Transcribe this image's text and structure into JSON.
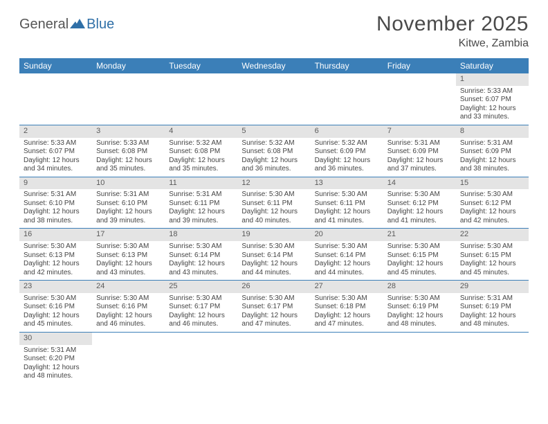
{
  "logo": {
    "text_general": "General",
    "text_blue": "Blue"
  },
  "header": {
    "month_title": "November 2025",
    "location": "Kitwe, Zambia"
  },
  "colors": {
    "header_bg": "#3b7fb8",
    "header_text": "#ffffff",
    "daynum_bg": "#e4e4e4",
    "body_text": "#444444",
    "rule": "#3b7fb8"
  },
  "day_names": [
    "Sunday",
    "Monday",
    "Tuesday",
    "Wednesday",
    "Thursday",
    "Friday",
    "Saturday"
  ],
  "weeks": [
    [
      null,
      null,
      null,
      null,
      null,
      null,
      {
        "n": 1,
        "sunrise": "5:33 AM",
        "sunset": "6:07 PM",
        "daylight": "12 hours and 33 minutes."
      }
    ],
    [
      {
        "n": 2,
        "sunrise": "5:33 AM",
        "sunset": "6:07 PM",
        "daylight": "12 hours and 34 minutes."
      },
      {
        "n": 3,
        "sunrise": "5:33 AM",
        "sunset": "6:08 PM",
        "daylight": "12 hours and 35 minutes."
      },
      {
        "n": 4,
        "sunrise": "5:32 AM",
        "sunset": "6:08 PM",
        "daylight": "12 hours and 35 minutes."
      },
      {
        "n": 5,
        "sunrise": "5:32 AM",
        "sunset": "6:08 PM",
        "daylight": "12 hours and 36 minutes."
      },
      {
        "n": 6,
        "sunrise": "5:32 AM",
        "sunset": "6:09 PM",
        "daylight": "12 hours and 36 minutes."
      },
      {
        "n": 7,
        "sunrise": "5:31 AM",
        "sunset": "6:09 PM",
        "daylight": "12 hours and 37 minutes."
      },
      {
        "n": 8,
        "sunrise": "5:31 AM",
        "sunset": "6:09 PM",
        "daylight": "12 hours and 38 minutes."
      }
    ],
    [
      {
        "n": 9,
        "sunrise": "5:31 AM",
        "sunset": "6:10 PM",
        "daylight": "12 hours and 38 minutes."
      },
      {
        "n": 10,
        "sunrise": "5:31 AM",
        "sunset": "6:10 PM",
        "daylight": "12 hours and 39 minutes."
      },
      {
        "n": 11,
        "sunrise": "5:31 AM",
        "sunset": "6:11 PM",
        "daylight": "12 hours and 39 minutes."
      },
      {
        "n": 12,
        "sunrise": "5:30 AM",
        "sunset": "6:11 PM",
        "daylight": "12 hours and 40 minutes."
      },
      {
        "n": 13,
        "sunrise": "5:30 AM",
        "sunset": "6:11 PM",
        "daylight": "12 hours and 41 minutes."
      },
      {
        "n": 14,
        "sunrise": "5:30 AM",
        "sunset": "6:12 PM",
        "daylight": "12 hours and 41 minutes."
      },
      {
        "n": 15,
        "sunrise": "5:30 AM",
        "sunset": "6:12 PM",
        "daylight": "12 hours and 42 minutes."
      }
    ],
    [
      {
        "n": 16,
        "sunrise": "5:30 AM",
        "sunset": "6:13 PM",
        "daylight": "12 hours and 42 minutes."
      },
      {
        "n": 17,
        "sunrise": "5:30 AM",
        "sunset": "6:13 PM",
        "daylight": "12 hours and 43 minutes."
      },
      {
        "n": 18,
        "sunrise": "5:30 AM",
        "sunset": "6:14 PM",
        "daylight": "12 hours and 43 minutes."
      },
      {
        "n": 19,
        "sunrise": "5:30 AM",
        "sunset": "6:14 PM",
        "daylight": "12 hours and 44 minutes."
      },
      {
        "n": 20,
        "sunrise": "5:30 AM",
        "sunset": "6:14 PM",
        "daylight": "12 hours and 44 minutes."
      },
      {
        "n": 21,
        "sunrise": "5:30 AM",
        "sunset": "6:15 PM",
        "daylight": "12 hours and 45 minutes."
      },
      {
        "n": 22,
        "sunrise": "5:30 AM",
        "sunset": "6:15 PM",
        "daylight": "12 hours and 45 minutes."
      }
    ],
    [
      {
        "n": 23,
        "sunrise": "5:30 AM",
        "sunset": "6:16 PM",
        "daylight": "12 hours and 45 minutes."
      },
      {
        "n": 24,
        "sunrise": "5:30 AM",
        "sunset": "6:16 PM",
        "daylight": "12 hours and 46 minutes."
      },
      {
        "n": 25,
        "sunrise": "5:30 AM",
        "sunset": "6:17 PM",
        "daylight": "12 hours and 46 minutes."
      },
      {
        "n": 26,
        "sunrise": "5:30 AM",
        "sunset": "6:17 PM",
        "daylight": "12 hours and 47 minutes."
      },
      {
        "n": 27,
        "sunrise": "5:30 AM",
        "sunset": "6:18 PM",
        "daylight": "12 hours and 47 minutes."
      },
      {
        "n": 28,
        "sunrise": "5:30 AM",
        "sunset": "6:19 PM",
        "daylight": "12 hours and 48 minutes."
      },
      {
        "n": 29,
        "sunrise": "5:31 AM",
        "sunset": "6:19 PM",
        "daylight": "12 hours and 48 minutes."
      }
    ],
    [
      {
        "n": 30,
        "sunrise": "5:31 AM",
        "sunset": "6:20 PM",
        "daylight": "12 hours and 48 minutes."
      },
      null,
      null,
      null,
      null,
      null,
      null
    ]
  ],
  "labels": {
    "sunrise_prefix": "Sunrise: ",
    "sunset_prefix": "Sunset: ",
    "daylight_prefix": "Daylight: "
  }
}
